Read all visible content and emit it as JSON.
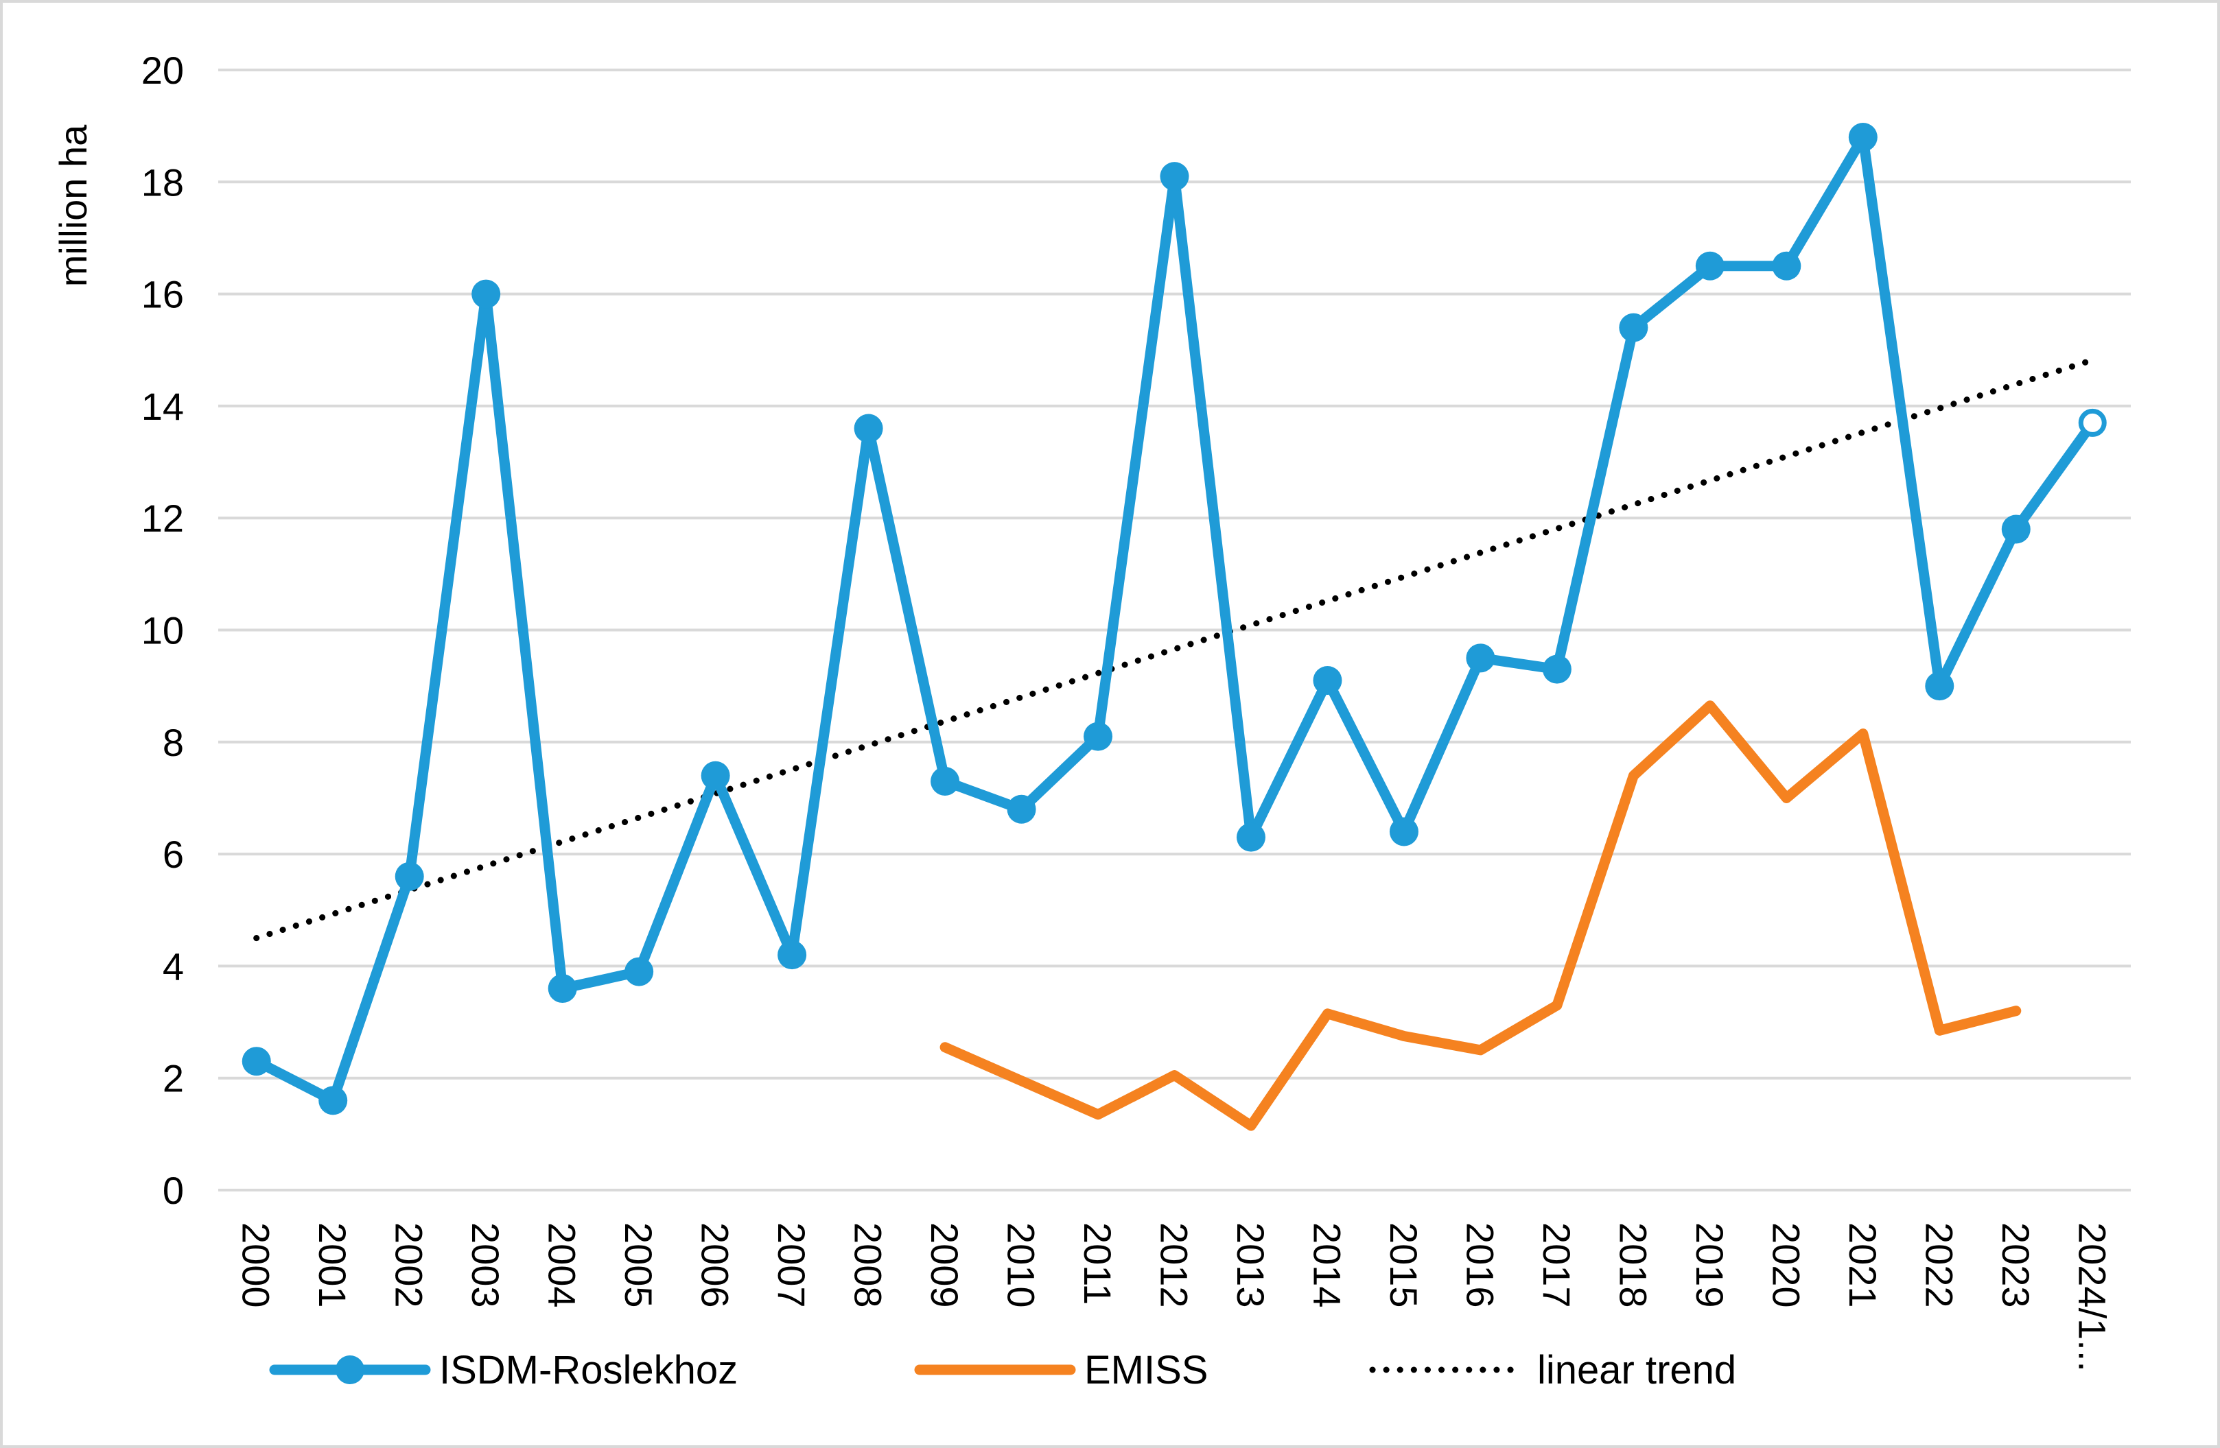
{
  "chart_data": {
    "type": "line",
    "title": "",
    "xlabel": "",
    "ylabel": "million ha",
    "ylim": [
      0,
      20
    ],
    "yticks": [
      "0",
      "2",
      "4",
      "6",
      "8",
      "10",
      "12",
      "14",
      "16",
      "18",
      "20"
    ],
    "categories": [
      "2000",
      "2001",
      "2002",
      "2003",
      "2004",
      "2005",
      "2006",
      "2007",
      "2008",
      "2009",
      "2010",
      "2011",
      "2012",
      "2013",
      "2014",
      "2015",
      "2016",
      "2017",
      "2018",
      "2019",
      "2020",
      "2021",
      "2022",
      "2023",
      "2024/1..."
    ],
    "grid": true,
    "legend_position": "bottom",
    "series": [
      {
        "name": "ISDM-Roslekhoz",
        "color": "#1f9bd7",
        "marker": "circle",
        "values": [
          2.3,
          1.6,
          5.6,
          16.0,
          3.6,
          3.9,
          7.4,
          4.2,
          13.6,
          7.3,
          6.8,
          8.1,
          18.1,
          6.3,
          9.1,
          6.4,
          9.5,
          9.3,
          15.4,
          16.5,
          16.5,
          18.8,
          9.0,
          11.8,
          13.7
        ],
        "last_point_hollow": true
      },
      {
        "name": "EMISS",
        "color": "#f58220",
        "marker": "none",
        "values": [
          null,
          null,
          null,
          null,
          null,
          null,
          null,
          null,
          null,
          2.55,
          1.95,
          1.35,
          2.05,
          1.15,
          3.15,
          2.75,
          2.5,
          3.3,
          7.4,
          8.65,
          7.0,
          8.15,
          2.85,
          3.2,
          null
        ]
      },
      {
        "name": "linear trend",
        "color": "#000000",
        "style": "dotted",
        "values": [
          4.5,
          4.93,
          5.36,
          5.79,
          6.22,
          6.65,
          7.08,
          7.51,
          7.94,
          8.37,
          8.8,
          9.23,
          9.66,
          10.09,
          10.52,
          10.95,
          11.38,
          11.81,
          12.24,
          12.67,
          13.1,
          13.53,
          13.96,
          14.39,
          14.82
        ]
      }
    ]
  }
}
